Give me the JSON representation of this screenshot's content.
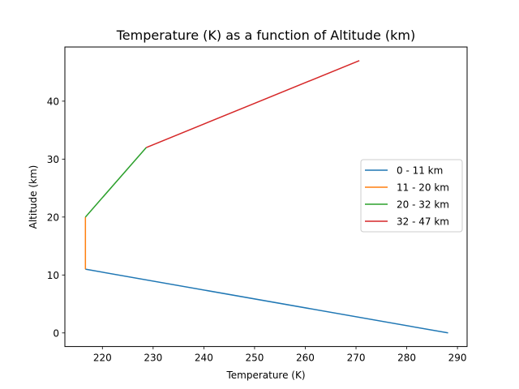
{
  "chart_data": {
    "type": "line",
    "title": "Temperature (K) as a function of Altitude (km)",
    "xlabel": "Temperature (K)",
    "ylabel": "Altitude (km)",
    "xlim": [
      212.6,
      291.9
    ],
    "ylim": [
      -2.35,
      49.35
    ],
    "xticks": [
      220,
      230,
      240,
      250,
      260,
      270,
      280,
      290
    ],
    "yticks": [
      0,
      10,
      20,
      30,
      40
    ],
    "grid": false,
    "legend_position": "center-right",
    "series": [
      {
        "name": "0 - 11 km",
        "color": "#1f77b4",
        "x": [
          288.15,
          216.65
        ],
        "y": [
          0,
          11
        ]
      },
      {
        "name": "11 - 20 km",
        "color": "#ff7f0e",
        "x": [
          216.65,
          216.65
        ],
        "y": [
          11,
          20
        ]
      },
      {
        "name": "20 - 32 km",
        "color": "#2ca02c",
        "x": [
          216.65,
          228.65
        ],
        "y": [
          20,
          32
        ]
      },
      {
        "name": "32 - 47 km",
        "color": "#d62728",
        "x": [
          228.65,
          270.65
        ],
        "y": [
          32,
          47
        ]
      }
    ]
  }
}
